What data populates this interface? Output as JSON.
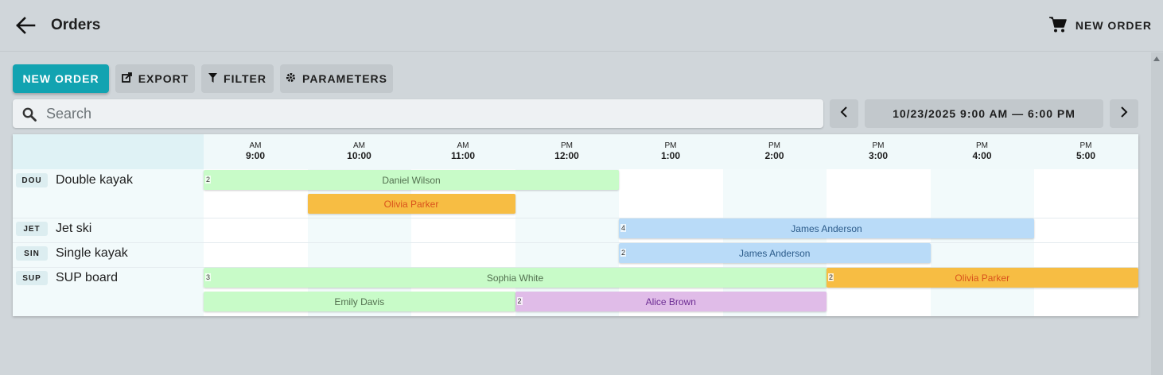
{
  "header": {
    "title": "Orders",
    "new_order": "NEW ORDER"
  },
  "toolbar": {
    "new_order": "NEW ORDER",
    "export": "EXPORT",
    "filter": "FILTER",
    "parameters": "PARAMETERS"
  },
  "search": {
    "placeholder": "Search",
    "value": ""
  },
  "date_range": "10/23/2025 9:00 AM — 6:00 PM",
  "timeline": [
    {
      "ampm": "AM",
      "time": "9:00"
    },
    {
      "ampm": "AM",
      "time": "10:00"
    },
    {
      "ampm": "AM",
      "time": "11:00"
    },
    {
      "ampm": "PM",
      "time": "12:00"
    },
    {
      "ampm": "PM",
      "time": "1:00"
    },
    {
      "ampm": "PM",
      "time": "2:00"
    },
    {
      "ampm": "PM",
      "time": "3:00"
    },
    {
      "ampm": "PM",
      "time": "4:00"
    },
    {
      "ampm": "PM",
      "time": "5:00"
    }
  ],
  "resources": [
    {
      "code": "DOU",
      "name": "Double kayak"
    },
    {
      "code": "JET",
      "name": "Jet ski"
    },
    {
      "code": "SIN",
      "name": "Single kayak"
    },
    {
      "code": "SUP",
      "name": "SUP board"
    }
  ],
  "orders": [
    {
      "name": "Daniel Wilson",
      "count": "2",
      "start": 9.0,
      "end": 13.0,
      "color": "green",
      "resource": "Double kayak",
      "lane": 0
    },
    {
      "name": "Olivia Parker",
      "count": "",
      "start": 10.0,
      "end": 12.0,
      "color": "orange",
      "resource": "Double kayak",
      "lane": 1
    },
    {
      "name": "James Anderson",
      "count": "4",
      "start": 13.0,
      "end": 17.0,
      "color": "blue",
      "resource": "Jet ski",
      "lane": 0
    },
    {
      "name": "James Anderson",
      "count": "2",
      "start": 13.0,
      "end": 16.0,
      "color": "blue",
      "resource": "Single kayak",
      "lane": 0
    },
    {
      "name": "Sophia White",
      "count": "3",
      "start": 9.0,
      "end": 15.0,
      "color": "green",
      "resource": "SUP board",
      "lane": 0
    },
    {
      "name": "Olivia Parker",
      "count": "2",
      "start": 15.0,
      "end": 18.0,
      "color": "orange",
      "resource": "SUP board",
      "lane": 0
    },
    {
      "name": "Emily Davis",
      "count": "",
      "start": 9.0,
      "end": 12.0,
      "color": "green",
      "resource": "SUP board",
      "lane": 1
    },
    {
      "name": "Alice Brown",
      "count": "2",
      "start": 12.0,
      "end": 15.0,
      "color": "purple",
      "resource": "SUP board",
      "lane": 1
    }
  ],
  "colors": {
    "primary": "#12a3b1",
    "green": "#c8fbc8",
    "orange": "#f7bd43",
    "blue": "#b9dbf8",
    "purple": "#e0bce8"
  }
}
